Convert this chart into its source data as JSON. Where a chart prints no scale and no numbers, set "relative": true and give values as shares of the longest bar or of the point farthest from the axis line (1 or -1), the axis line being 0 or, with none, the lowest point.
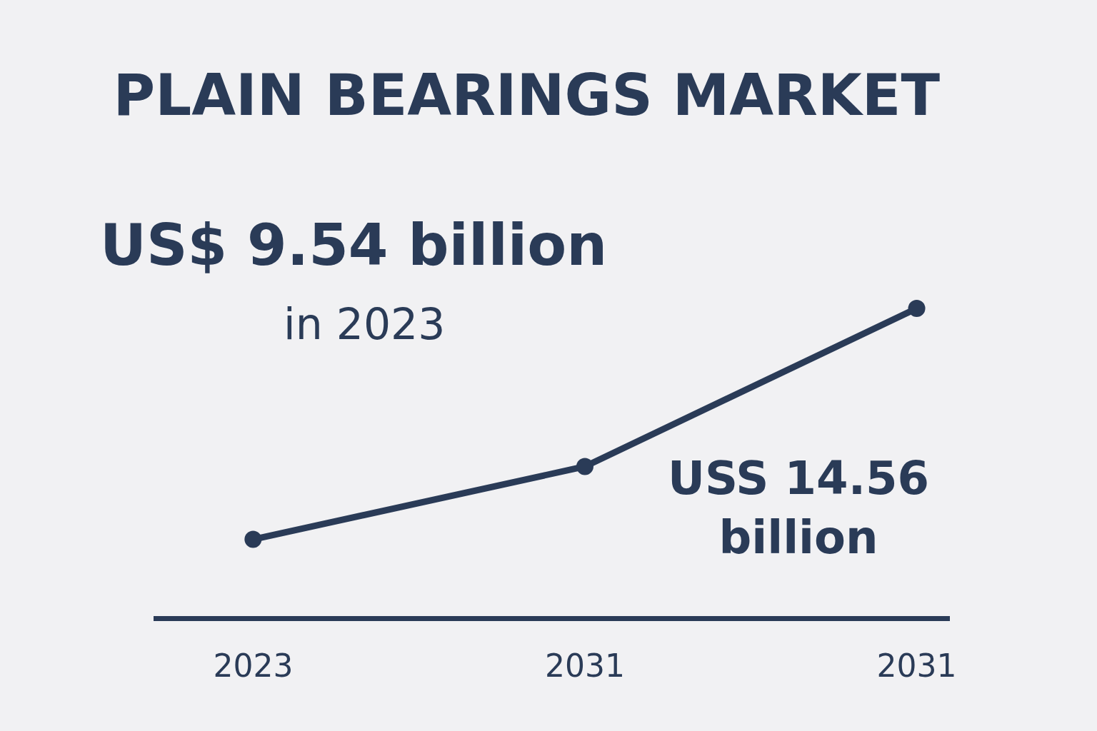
{
  "chart_data": {
    "type": "line",
    "title": "PLAIN BEARINGS MARKET",
    "categories": [
      "2023",
      "2031",
      "2031"
    ],
    "relative": true,
    "series": [
      {
        "color": "#2a3b57",
        "values": [
          0.255,
          0.49,
          1
        ]
      }
    ],
    "marker": "circle",
    "line_style": "solid",
    "grid": false,
    "annotations": [
      "US$ 9.54 billion",
      "in 2023",
      "USS 14.56 billion"
    ]
  }
}
